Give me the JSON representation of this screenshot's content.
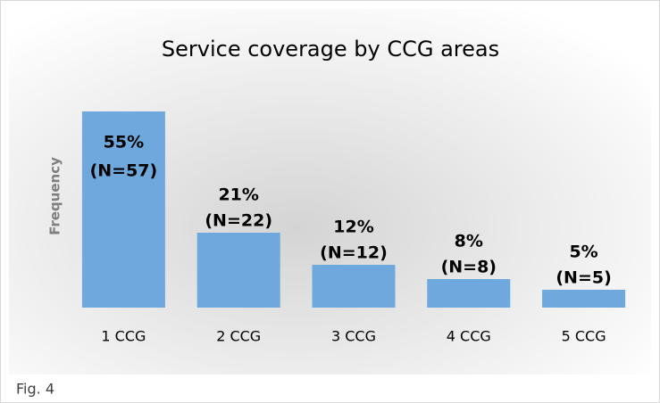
{
  "chart_data": {
    "type": "bar",
    "title": "Service coverage by CCG areas",
    "ylabel": "Frequency",
    "categories": [
      "1 CCG",
      "2 CCG",
      "3 CCG",
      "4 CCG",
      "5 CCG"
    ],
    "values": [
      55,
      21,
      12,
      8,
      5
    ],
    "value_labels": [
      "55%",
      "21%",
      "12%",
      "8%",
      "5%"
    ],
    "count_labels": [
      "(N=57)",
      "(N=22)",
      "(N=12)",
      "(N=8)",
      "(N=5)"
    ],
    "color": "#6fa8dc",
    "caption": "Fig. 4"
  }
}
